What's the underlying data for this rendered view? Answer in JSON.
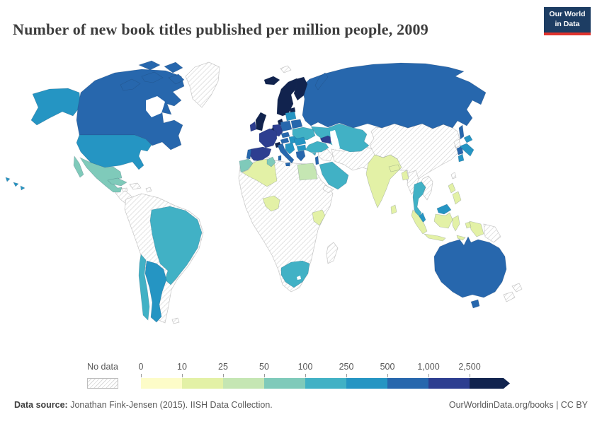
{
  "header": {
    "title": "Number of new book titles published per million people, 2009",
    "logo": {
      "line1": "Our World",
      "line2": "in Data",
      "bg": "#1d3d63",
      "accent": "#e0332d"
    }
  },
  "palette": {
    "bin_0_10": "#fdfcc8",
    "bin_10_25": "#e3f1a6",
    "bin_25_50": "#c5e6b3",
    "bin_50_100": "#7fcaba",
    "bin_100_250": "#41b1c5",
    "bin_250_500": "#2595c3",
    "bin_500_1000": "#2767ad",
    "bin_1000_2500": "#2d3e90",
    "bin_2500_plus": "#11234e",
    "no_data_hatch_line": "#d6d6d6",
    "border_gray": "#c6c6c6"
  },
  "legend": {
    "no_data_label": "No data",
    "ticks": [
      "0",
      "10",
      "25",
      "50",
      "100",
      "250",
      "500",
      "1,000",
      "2,500"
    ],
    "bins": [
      "bin_0_10",
      "bin_10_25",
      "bin_25_50",
      "bin_50_100",
      "bin_100_250",
      "bin_250_500",
      "bin_500_1000",
      "bin_1000_2500",
      "bin_2500_plus"
    ]
  },
  "footer": {
    "source_label": "Data source:",
    "source_text": " Jonathan Fink-Jensen (2015). IISH Data Collection.",
    "right_text": "OurWorldinData.org/books | CC BY"
  },
  "chart_data": {
    "type": "choropleth",
    "title": "Number of new book titles published per million people, 2009",
    "unit": "new book titles per million people",
    "year": 2009,
    "legend_bins": [
      {
        "range": "0-10",
        "color": "#fdfcc8"
      },
      {
        "range": "10-25",
        "color": "#e3f1a6"
      },
      {
        "range": "25-50",
        "color": "#c5e6b3"
      },
      {
        "range": "50-100",
        "color": "#7fcaba"
      },
      {
        "range": "100-250",
        "color": "#41b1c5"
      },
      {
        "range": "250-500",
        "color": "#2595c3"
      },
      {
        "range": "500-1,000",
        "color": "#2767ad"
      },
      {
        "range": "1,000-2,500",
        "color": "#2d3e90"
      },
      {
        "range": "2,500+",
        "color": "#11234e"
      }
    ],
    "countries": [
      {
        "name": "Iceland",
        "bin": "2,500+"
      },
      {
        "name": "Norway",
        "bin": "2,500+"
      },
      {
        "name": "Sweden",
        "bin": "2,500+"
      },
      {
        "name": "Finland",
        "bin": "2,500+"
      },
      {
        "name": "Denmark",
        "bin": "2,500+"
      },
      {
        "name": "United Kingdom",
        "bin": "2,500+"
      },
      {
        "name": "Netherlands",
        "bin": "2,500+"
      },
      {
        "name": "Switzerland",
        "bin": "2,500+"
      },
      {
        "name": "Estonia",
        "bin": "2,500+"
      },
      {
        "name": "Ireland",
        "bin": "1,000-2,500"
      },
      {
        "name": "France",
        "bin": "1,000-2,500"
      },
      {
        "name": "Spain",
        "bin": "1,000-2,500"
      },
      {
        "name": "Germany",
        "bin": "1,000-2,500"
      },
      {
        "name": "Georgia",
        "bin": "1,000-2,500"
      },
      {
        "name": "Canada",
        "bin": "500-1,000"
      },
      {
        "name": "Russia",
        "bin": "500-1,000"
      },
      {
        "name": "Australia",
        "bin": "500-1,000"
      },
      {
        "name": "Italy",
        "bin": "500-1,000"
      },
      {
        "name": "Poland",
        "bin": "500-1,000"
      },
      {
        "name": "Czechia",
        "bin": "500-1,000"
      },
      {
        "name": "Austria",
        "bin": "500-1,000"
      },
      {
        "name": "Belarus",
        "bin": "500-1,000"
      },
      {
        "name": "Portugal",
        "bin": "500-1,000"
      },
      {
        "name": "Greece",
        "bin": "500-1,000"
      },
      {
        "name": "South Korea",
        "bin": "500-1,000"
      },
      {
        "name": "Israel",
        "bin": "500-1,000"
      },
      {
        "name": "United States",
        "bin": "250-500"
      },
      {
        "name": "Japan",
        "bin": "250-500"
      },
      {
        "name": "Argentina",
        "bin": "250-500"
      },
      {
        "name": "Malaysia",
        "bin": "250-500"
      },
      {
        "name": "Latvia",
        "bin": "250-500"
      },
      {
        "name": "Lithuania",
        "bin": "250-500"
      },
      {
        "name": "Hungary",
        "bin": "250-500"
      },
      {
        "name": "Romania",
        "bin": "250-500"
      },
      {
        "name": "Bulgaria",
        "bin": "250-500"
      },
      {
        "name": "Serbia",
        "bin": "250-500"
      },
      {
        "name": "Brazil",
        "bin": "100-250"
      },
      {
        "name": "Chile",
        "bin": "100-250"
      },
      {
        "name": "Ukraine",
        "bin": "100-250"
      },
      {
        "name": "Kazakhstan",
        "bin": "100-250"
      },
      {
        "name": "Uzbekistan",
        "bin": "100-250"
      },
      {
        "name": "Turkey",
        "bin": "100-250"
      },
      {
        "name": "Saudi Arabia",
        "bin": "100-250"
      },
      {
        "name": "United Arab Emirates",
        "bin": "100-250"
      },
      {
        "name": "South Africa",
        "bin": "100-250"
      },
      {
        "name": "Thailand",
        "bin": "100-250"
      },
      {
        "name": "Mexico",
        "bin": "50-100"
      },
      {
        "name": "Cuba",
        "bin": "50-100"
      },
      {
        "name": "Morocco",
        "bin": "50-100"
      },
      {
        "name": "Tunisia",
        "bin": "50-100"
      },
      {
        "name": "Egypt",
        "bin": "25-50"
      },
      {
        "name": "Algeria",
        "bin": "10-25"
      },
      {
        "name": "Nigeria",
        "bin": "10-25"
      },
      {
        "name": "Kenya",
        "bin": "10-25"
      },
      {
        "name": "India",
        "bin": "10-25"
      },
      {
        "name": "Nepal",
        "bin": "10-25"
      },
      {
        "name": "Bangladesh",
        "bin": "10-25"
      },
      {
        "name": "Sri Lanka",
        "bin": "10-25"
      },
      {
        "name": "Indonesia",
        "bin": "10-25"
      },
      {
        "name": "Philippines",
        "bin": "10-25"
      }
    ],
    "no_data": [
      "Greenland",
      "China",
      "Mongolia",
      "Iran",
      "Iraq",
      "Syria",
      "Afghanistan",
      "Pakistan",
      "Vietnam",
      "Laos",
      "Cambodia",
      "Myanmar",
      "North Korea",
      "Taiwan",
      "New Zealand",
      "Papua New Guinea",
      "Madagascar",
      "Libya",
      "Sudan",
      "most of Sub-Saharan Africa",
      "Venezuela",
      "Colombia",
      "Peru",
      "Bolivia",
      "Ecuador",
      "Central America",
      "Caribbean (except Cuba)",
      "Yemen"
    ]
  }
}
